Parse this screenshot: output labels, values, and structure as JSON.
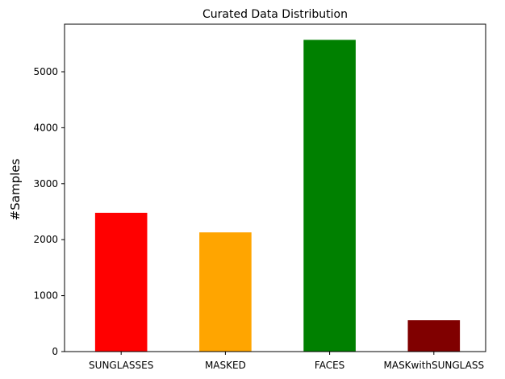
{
  "chart_data": {
    "type": "bar",
    "title": "Curated Data Distribution",
    "xlabel": "",
    "ylabel": "#Samples",
    "categories": [
      "SUNGLASSES",
      "MASKED",
      "FACES",
      "MASKwithSUNGLASS"
    ],
    "values": [
      2480,
      2130,
      5570,
      560
    ],
    "colors": [
      "#ff0000",
      "#ffa500",
      "#008000",
      "#800000"
    ],
    "ylim": [
      0,
      5850
    ],
    "yticks": [
      0,
      1000,
      2000,
      3000,
      4000,
      5000
    ],
    "grid": false,
    "legend": "none"
  }
}
